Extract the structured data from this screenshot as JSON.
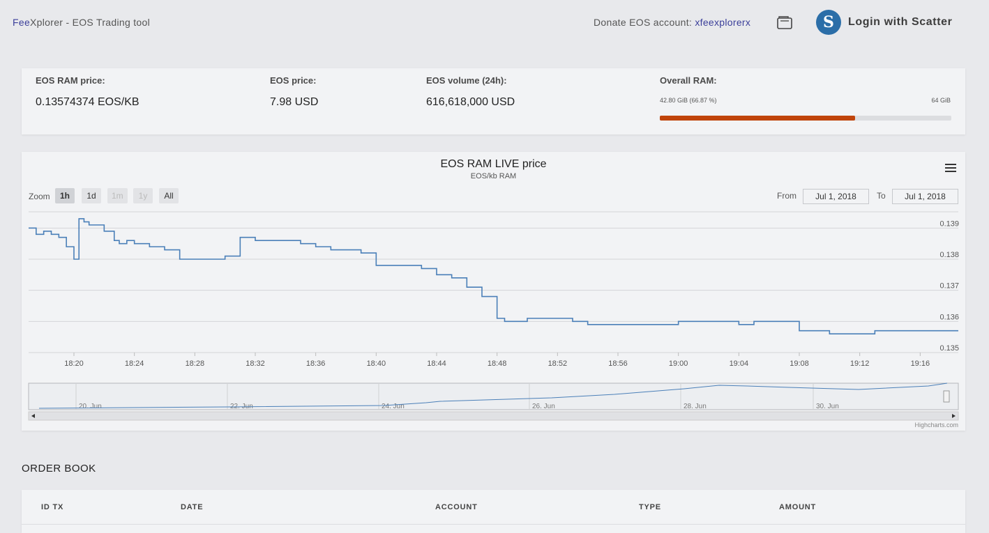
{
  "header": {
    "brand_prefix": "Fee",
    "brand_rest": "Xplorer - EOS Trading tool",
    "donate_label": "Donate EOS account:",
    "donate_account": "xfeexplorerx",
    "login_label": "Login with Scatter",
    "icons": [
      "wallet-icon",
      "scatter-logo-icon"
    ]
  },
  "stats": {
    "ram_price": {
      "label": "EOS RAM price:",
      "value": "0.13574374 EOS/KB"
    },
    "eos_price": {
      "label": "EOS price:",
      "value": "7.98 USD"
    },
    "volume": {
      "label": "EOS volume (24h):",
      "value": "616,618,000 USD"
    },
    "overall_ram": {
      "label": "Overall RAM:",
      "used": "42.80 GiB (66.87 %)",
      "total": "64 GiB",
      "fraction": 0.6687
    },
    "colors": {
      "ram_bar": "#c0440a"
    }
  },
  "chart": {
    "menu_icon": "hamburger-menu-icon",
    "zoom_label": "Zoom",
    "zoom_buttons": [
      {
        "label": "1h",
        "state": "active"
      },
      {
        "label": "1d",
        "state": "normal"
      },
      {
        "label": "1m",
        "state": "disabled"
      },
      {
        "label": "1y",
        "state": "disabled"
      },
      {
        "label": "All",
        "state": "normal"
      }
    ],
    "from_label": "From",
    "from_value": "Jul 1, 2018",
    "to_label": "To",
    "to_value": "Jul 1, 2018",
    "credit": "Highcharts.com",
    "navigator_labels": [
      "20. Jun",
      "22. Jun",
      "24. Jun",
      "26. Jun",
      "28. Jun",
      "30. Jun"
    ],
    "line_color": "#4a7fb8"
  },
  "chart_data": {
    "type": "line",
    "title": "EOS RAM LIVE price",
    "subtitle": "EOS/kb RAM",
    "xlabel": "",
    "ylabel": "",
    "ylim": [
      0.135,
      0.1395
    ],
    "y_ticks": [
      "0.135",
      "0.136",
      "0.137",
      "0.138",
      "0.139"
    ],
    "x_ticks": [
      "18:20",
      "18:24",
      "18:28",
      "18:32",
      "18:36",
      "18:40",
      "18:44",
      "18:48",
      "18:52",
      "18:56",
      "19:00",
      "19:04",
      "19:08",
      "19:12",
      "19:16"
    ],
    "xlim": [
      "18:17",
      "19:17"
    ],
    "grid": true,
    "series": [
      {
        "x": [
          "18:17",
          "18:17:30",
          "18:18",
          "18:18:30",
          "18:19",
          "18:19:30",
          "18:20",
          "18:20:20",
          "18:20:40",
          "18:21",
          "18:22",
          "18:22:40",
          "18:23",
          "18:23:30",
          "18:24",
          "18:25",
          "18:26",
          "18:27",
          "18:28",
          "18:29",
          "18:30",
          "18:31",
          "18:32",
          "18:33",
          "18:34",
          "18:35",
          "18:36",
          "18:37",
          "18:38",
          "18:39",
          "18:40",
          "18:41",
          "18:42",
          "18:43",
          "18:44",
          "18:45",
          "18:46",
          "18:47",
          "18:48",
          "18:48:30",
          "18:49",
          "18:50",
          "18:51",
          "18:52",
          "18:53",
          "18:54",
          "18:55",
          "18:56",
          "18:57",
          "18:58",
          "18:59",
          "19:00",
          "19:01",
          "19:02",
          "19:03",
          "19:04",
          "19:05",
          "19:06",
          "19:07",
          "19:08",
          "19:09",
          "19:10",
          "19:11",
          "19:12",
          "19:13",
          "19:14",
          "19:15",
          "19:16",
          "19:17"
        ],
        "y": [
          0.139,
          0.1388,
          0.1389,
          0.1388,
          0.1387,
          0.1384,
          0.138,
          0.1393,
          0.1392,
          0.1391,
          0.1389,
          0.1386,
          0.1385,
          0.1386,
          0.1385,
          0.1384,
          0.1383,
          0.138,
          0.138,
          0.138,
          0.1381,
          0.1387,
          0.1386,
          0.1386,
          0.1386,
          0.1385,
          0.1384,
          0.1383,
          0.1383,
          0.1382,
          0.1378,
          0.1378,
          0.1378,
          0.1377,
          0.1375,
          0.1374,
          0.1371,
          0.1368,
          0.1361,
          0.136,
          0.136,
          0.1361,
          0.1361,
          0.1361,
          0.136,
          0.1359,
          0.1359,
          0.1359,
          0.1359,
          0.1359,
          0.1359,
          0.136,
          0.136,
          0.136,
          0.136,
          0.1359,
          0.136,
          0.136,
          0.136,
          0.1357,
          0.1357,
          0.1356,
          0.1356,
          0.1356,
          0.1357,
          0.1357,
          0.1357,
          0.1357,
          0.1357
        ]
      }
    ]
  },
  "order_book": {
    "title": "ORDER BOOK",
    "columns": [
      "ID TX",
      "DATE",
      "ACCOUNT",
      "TYPE",
      "AMOUNT"
    ]
  }
}
